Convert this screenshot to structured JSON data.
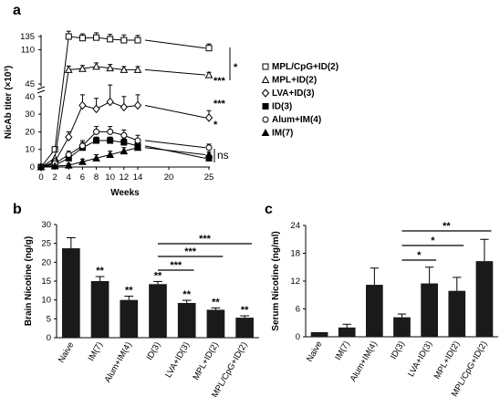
{
  "chart_data": [
    {
      "panel": "a",
      "type": "line",
      "xlabel": "Weeks",
      "ylabel": "NicAb titer (×10³)",
      "x_ticks": [
        0,
        2,
        4,
        6,
        8,
        10,
        12,
        14,
        20,
        25
      ],
      "x_tick_labels": [
        "0",
        "2",
        "4",
        "6",
        "8",
        "10",
        "12",
        "14",
        "20",
        "25"
      ],
      "y_tick_labels_top": [
        "45",
        "110",
        "135"
      ],
      "y_tick_labels_bottom": [
        "0",
        "10",
        "20",
        "30",
        "40"
      ],
      "series": [
        {
          "name": "MPL/CpG+ID(2)",
          "marker": "square-open",
          "x": [
            0,
            2,
            4,
            6,
            8,
            10,
            12,
            14,
            25
          ],
          "y": [
            0,
            10,
            135,
            132,
            133,
            130,
            128,
            128,
            113
          ],
          "err": [
            0,
            0,
            10,
            8,
            9,
            9,
            10,
            9,
            8
          ]
        },
        {
          "name": "MPL+ID(2)",
          "marker": "triangle-open",
          "x": [
            0,
            2,
            4,
            6,
            8,
            10,
            12,
            14,
            25
          ],
          "y": [
            0,
            5,
            72,
            74,
            78,
            75,
            72,
            72,
            62
          ],
          "err": [
            0,
            0,
            7,
            6,
            7,
            7,
            6,
            6,
            5
          ]
        },
        {
          "name": "LVA+ID(3)",
          "marker": "diamond-open",
          "x": [
            0,
            2,
            4,
            6,
            8,
            10,
            12,
            14,
            25
          ],
          "y": [
            0,
            3,
            17,
            35,
            33,
            37,
            34,
            35,
            28
          ],
          "err": [
            0,
            1,
            3,
            6,
            6,
            6,
            6,
            6,
            4
          ]
        },
        {
          "name": "ID(3)",
          "marker": "square-filled",
          "x": [
            0,
            2,
            4,
            6,
            8,
            10,
            12,
            14,
            25
          ],
          "y": [
            0,
            1,
            5,
            11,
            15,
            15,
            14,
            12,
            5
          ],
          "err": [
            0,
            0.5,
            2,
            3,
            2,
            2,
            2,
            2,
            1.5
          ]
        },
        {
          "name": "Alum+IM(4)",
          "marker": "circle-open",
          "x": [
            0,
            2,
            4,
            6,
            8,
            10,
            12,
            14,
            25
          ],
          "y": [
            0,
            2,
            7,
            12,
            20,
            20,
            18,
            15,
            11
          ],
          "err": [
            0,
            1,
            2,
            3,
            3,
            3,
            3,
            3,
            2
          ]
        },
        {
          "name": "IM(7)",
          "marker": "triangle-filled",
          "x": [
            0,
            2,
            4,
            6,
            8,
            10,
            12,
            14,
            25
          ],
          "y": [
            0,
            0.5,
            1,
            3,
            5,
            7,
            9,
            11,
            7
          ],
          "err": [
            0,
            0,
            1,
            1.5,
            2,
            2,
            2,
            2,
            1.5
          ]
        }
      ],
      "annotations": {
        "sig_a": "***",
        "sig_b": "***",
        "sig_c": "*",
        "sig_d": "*",
        "ns": "ns"
      }
    },
    {
      "panel": "b",
      "type": "bar",
      "ylabel": "Brain Nicotine (ng/g)",
      "ylim": [
        0,
        30
      ],
      "y_ticks": [
        0,
        5,
        10,
        15,
        20,
        25,
        30
      ],
      "categories": [
        "Naive",
        "IM(7)",
        "Alum+IM(4)",
        "ID(3)",
        "LVA+ID(3)",
        "MPL+ID(2)",
        "MPL/CpG+ID(2)"
      ],
      "values": [
        23.7,
        15.0,
        10.0,
        14.2,
        9.2,
        7.4,
        5.3
      ],
      "errors": [
        2.8,
        1.2,
        1.0,
        0.7,
        0.7,
        0.5,
        0.5
      ],
      "bar_labels": [
        "",
        "**",
        "**",
        "**",
        "**",
        "**",
        "**"
      ],
      "comparisons": [
        {
          "from": 3,
          "to": 6,
          "label": "***"
        },
        {
          "from": 3,
          "to": 5,
          "label": "***"
        },
        {
          "from": 3,
          "to": 4,
          "label": "***"
        }
      ]
    },
    {
      "panel": "c",
      "type": "bar",
      "ylabel": "Serum Nicotine (ng/ml)",
      "ylim": [
        0,
        24
      ],
      "y_ticks": [
        0,
        6,
        12,
        18,
        24
      ],
      "categories": [
        "Naive",
        "IM(7)",
        "Alum+IM(4)",
        "ID(3)",
        "LVA+ID(3)",
        "MPL+ID(2)",
        "MPL/CpG+ID(2)"
      ],
      "values": [
        1.0,
        2.0,
        11.2,
        4.2,
        11.5,
        9.9,
        16.3
      ],
      "errors": [
        0,
        0.7,
        3.6,
        0.7,
        3.5,
        2.9,
        4.7
      ],
      "comparisons": [
        {
          "from": 3,
          "to": 6,
          "label": "**"
        },
        {
          "from": 3,
          "to": 5,
          "label": "*"
        },
        {
          "from": 3,
          "to": 4,
          "label": "*"
        }
      ]
    }
  ]
}
